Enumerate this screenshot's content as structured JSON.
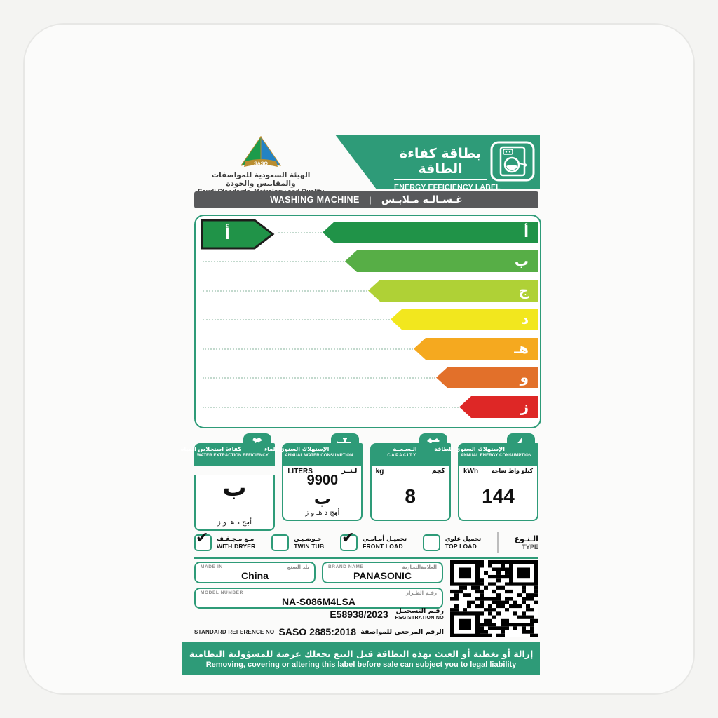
{
  "theme": {
    "teal": "#2E9B78",
    "gray_bar": "#58595B",
    "pointer_border": "#1d1d1b"
  },
  "header": {
    "logo_text": "SASO",
    "org_ar": "الهيئة السعودية للمواصفات والمقاييس والجودة",
    "org_en": "Saudi Standards, Metrology and Quality Org.",
    "banner_ar": "بطاقة كفاءة الطاقة",
    "banner_en": "ENERGY EFFICIENCY LABEL"
  },
  "product_bar": {
    "en": "WASHING MACHINE",
    "divider": "|",
    "ar": "غـسـالـة مـلابـس"
  },
  "rating": {
    "selected_grade": "أ",
    "indicator_color": "#209348",
    "bars": [
      {
        "letter": "أ",
        "color": "#209348"
      },
      {
        "letter": "ب",
        "color": "#57AE46"
      },
      {
        "letter": "ج",
        "color": "#AFD136"
      },
      {
        "letter": "د",
        "color": "#F2E71E"
      },
      {
        "letter": "هـ",
        "color": "#F5A91F"
      },
      {
        "letter": "و",
        "color": "#E2702A"
      },
      {
        "letter": "ز",
        "color": "#DE2726"
      }
    ]
  },
  "letters_scale": {
    "before": "أ",
    "selected": "ب",
    "after": "ج د هـ و ز"
  },
  "metrics": {
    "water_extraction": {
      "title_ar": "كفاءة استخلاص المياه",
      "title_en": "WATER EXTRACTION EFFICIENCY",
      "grade": "ب"
    },
    "water_consumption": {
      "title_ar": "الإستهلاك السنوي للماء",
      "title_en": "ANNUAL WATER CONSUMPTION",
      "unit_en": "LITERS",
      "unit_ar": "لـتــر",
      "value": "9900",
      "grade": "ب"
    },
    "capacity": {
      "title_ar": "الـسـعــة",
      "title_en": "CAPACITY",
      "unit_en": "kg",
      "unit_ar": "كجم",
      "value": "8",
      "tab_badge": "kg"
    },
    "energy_consumption": {
      "title_ar": "الإستهلاك السنوي للطاقة",
      "title_en": "ANNUAL ENERGY CONSUMPTION",
      "unit_en": "kWh",
      "unit_ar": "كيلو واط ساعة",
      "value": "144"
    }
  },
  "type_row": {
    "label_ar": "الـنـوع",
    "label_en": "TYPE",
    "options": [
      {
        "ar": "مـع مـجـفـف",
        "en": "WITH DRYER",
        "checked": true
      },
      {
        "ar": "حـوضـيـن",
        "en": "TWIN TUB",
        "checked": false
      },
      {
        "ar": "تحميـل أمـامـي",
        "en": "FRONT LOAD",
        "checked": true
      },
      {
        "ar": "تحميل علوي",
        "en": "TOP LOAD",
        "checked": false
      }
    ],
    "check_glyph": "✔"
  },
  "fields": {
    "made_in": {
      "label_en": "MADE IN",
      "label_ar": "بلد الصنع",
      "value": "China"
    },
    "brand": {
      "label_en": "BRAND NAME",
      "label_ar": "العلامةالتجارية",
      "value": "PANASONIC"
    },
    "model": {
      "label_en": "MODEL NUMBER",
      "label_ar": "رقـم الطـراز",
      "value": "NA-S086M4LSA"
    },
    "registration": {
      "value": "E58938/2023",
      "label_ar": "رقـم التسجيـل",
      "label_en": "REGISTRATION NO"
    },
    "standard": {
      "label_en": "STANDARD REFERENCE NO",
      "value": "SASO 2885:2018",
      "label_ar": "الرقم المرجعي للمواصفة"
    }
  },
  "footer": {
    "ar": "إزالة أو تغطية أو العبث بهذه البطاقة قبل البيع يجعلك عرضة للمسؤولية النظامية",
    "en": "Removing, covering or altering this label before sale can subject you to legal liability"
  }
}
